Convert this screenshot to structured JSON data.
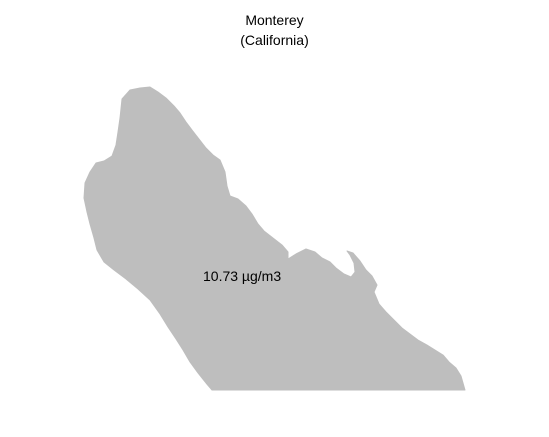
{
  "map": {
    "title": "Monterey",
    "subtitle": "(California)",
    "region_label": "10.73 µg/m3",
    "fill_color": "#bebebe",
    "background_color": "#ffffff"
  }
}
